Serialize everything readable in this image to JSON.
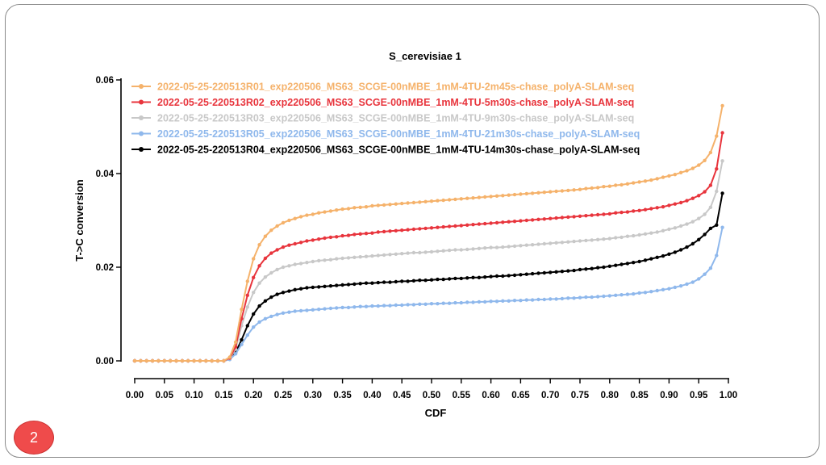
{
  "page_number": "2",
  "chart_data": {
    "type": "line",
    "title": "S_cerevisiae 1",
    "xlabel": "CDF",
    "ylabel": "T->C conversion",
    "xlim": [
      0.0,
      1.0
    ],
    "ylim": [
      0.0,
      0.06
    ],
    "x_ticks": [
      "0.00",
      "0.05",
      "0.10",
      "0.15",
      "0.20",
      "0.25",
      "0.30",
      "0.35",
      "0.40",
      "0.45",
      "0.50",
      "0.55",
      "0.60",
      "0.65",
      "0.70",
      "0.75",
      "0.80",
      "0.85",
      "0.90",
      "0.95",
      "1.00"
    ],
    "y_ticks": [
      "0.00",
      "0.02",
      "0.04",
      "0.06"
    ],
    "grid": false,
    "legend_position": "top-left",
    "x": [
      0.0,
      0.01,
      0.02,
      0.03,
      0.04,
      0.05,
      0.06,
      0.07,
      0.08,
      0.09,
      0.1,
      0.11,
      0.12,
      0.13,
      0.14,
      0.15,
      0.16,
      0.17,
      0.18,
      0.19,
      0.2,
      0.21,
      0.22,
      0.23,
      0.24,
      0.25,
      0.26,
      0.27,
      0.28,
      0.29,
      0.3,
      0.31,
      0.32,
      0.33,
      0.34,
      0.35,
      0.36,
      0.37,
      0.38,
      0.39,
      0.4,
      0.41,
      0.42,
      0.43,
      0.44,
      0.45,
      0.46,
      0.47,
      0.48,
      0.49,
      0.5,
      0.51,
      0.52,
      0.53,
      0.54,
      0.55,
      0.56,
      0.57,
      0.58,
      0.59,
      0.6,
      0.61,
      0.62,
      0.63,
      0.64,
      0.65,
      0.66,
      0.67,
      0.68,
      0.69,
      0.7,
      0.71,
      0.72,
      0.73,
      0.74,
      0.75,
      0.76,
      0.77,
      0.78,
      0.79,
      0.8,
      0.81,
      0.82,
      0.83,
      0.84,
      0.85,
      0.86,
      0.87,
      0.88,
      0.89,
      0.9,
      0.91,
      0.92,
      0.93,
      0.94,
      0.95,
      0.96,
      0.97,
      0.98,
      0.99
    ],
    "series": [
      {
        "name": "2022-05-25-220513R01_exp220506_MS63_SCGE-00nMBE_1mM-4TU-2m45s-chase_polyA-SLAM-seq",
        "color": "#f5b26b",
        "values": [
          0.0,
          0.0,
          0.0,
          0.0,
          0.0,
          0.0,
          0.0,
          0.0,
          0.0,
          0.0,
          0.0,
          0.0,
          0.0,
          0.0,
          0.0,
          0.0,
          0.0008,
          0.004,
          0.011,
          0.017,
          0.0218,
          0.0248,
          0.0266,
          0.0279,
          0.0288,
          0.0295,
          0.03,
          0.0304,
          0.0308,
          0.0311,
          0.0313,
          0.0316,
          0.0318,
          0.032,
          0.0322,
          0.0324,
          0.0325,
          0.0327,
          0.0328,
          0.0329,
          0.0331,
          0.0332,
          0.0333,
          0.0334,
          0.0335,
          0.0336,
          0.0337,
          0.0338,
          0.0339,
          0.034,
          0.0341,
          0.0342,
          0.0343,
          0.0344,
          0.0345,
          0.0346,
          0.0347,
          0.0348,
          0.0349,
          0.035,
          0.0351,
          0.0352,
          0.0353,
          0.0354,
          0.0355,
          0.0356,
          0.0357,
          0.0358,
          0.0359,
          0.036,
          0.0361,
          0.0362,
          0.0363,
          0.0364,
          0.0365,
          0.0366,
          0.0368,
          0.0369,
          0.037,
          0.0372,
          0.0373,
          0.0375,
          0.0376,
          0.0378,
          0.038,
          0.0382,
          0.0384,
          0.0386,
          0.0389,
          0.0392,
          0.0395,
          0.0398,
          0.0402,
          0.0406,
          0.0411,
          0.0418,
          0.0428,
          0.0445,
          0.048,
          0.0545
        ]
      },
      {
        "name": "2022-05-25-220513R02_exp220506_MS63_SCGE-00nMBE_1mM-4TU-5m30s-chase_polyA-SLAM-seq",
        "color": "#e8353d",
        "values": [
          0.0,
          0.0,
          0.0,
          0.0,
          0.0,
          0.0,
          0.0,
          0.0,
          0.0,
          0.0,
          0.0,
          0.0,
          0.0,
          0.0,
          0.0,
          0.0,
          0.0006,
          0.003,
          0.009,
          0.014,
          0.0178,
          0.0203,
          0.0219,
          0.023,
          0.0237,
          0.0243,
          0.0247,
          0.025,
          0.0253,
          0.0256,
          0.0258,
          0.026,
          0.0262,
          0.0264,
          0.0265,
          0.0267,
          0.0268,
          0.027,
          0.0271,
          0.0272,
          0.0273,
          0.0275,
          0.0276,
          0.0277,
          0.0278,
          0.0279,
          0.028,
          0.0281,
          0.0282,
          0.0283,
          0.0284,
          0.0285,
          0.0286,
          0.0287,
          0.0288,
          0.0289,
          0.029,
          0.0291,
          0.0292,
          0.0293,
          0.0294,
          0.0295,
          0.0296,
          0.0297,
          0.0298,
          0.0299,
          0.03,
          0.0301,
          0.0302,
          0.0303,
          0.0304,
          0.0305,
          0.0306,
          0.0307,
          0.0308,
          0.0309,
          0.031,
          0.0311,
          0.0312,
          0.0313,
          0.0314,
          0.0316,
          0.0317,
          0.0318,
          0.032,
          0.0321,
          0.0323,
          0.0325,
          0.0327,
          0.0329,
          0.0332,
          0.0335,
          0.0338,
          0.0342,
          0.0347,
          0.0353,
          0.0361,
          0.0375,
          0.041,
          0.0487
        ]
      },
      {
        "name": "2022-05-25-220513R03_exp220506_MS63_SCGE-00nMBE_1mM-4TU-9m30s-chase_polyA-SLAM-seq",
        "color": "#c8c8c8",
        "values": [
          0.0,
          0.0,
          0.0,
          0.0,
          0.0,
          0.0,
          0.0,
          0.0,
          0.0,
          0.0,
          0.0,
          0.0,
          0.0,
          0.0,
          0.0,
          0.0,
          0.0005,
          0.0025,
          0.0075,
          0.0115,
          0.0146,
          0.0166,
          0.0179,
          0.0188,
          0.0195,
          0.02,
          0.0203,
          0.0206,
          0.0208,
          0.021,
          0.0212,
          0.0214,
          0.0215,
          0.0216,
          0.0218,
          0.0219,
          0.022,
          0.0221,
          0.0222,
          0.0223,
          0.0224,
          0.0225,
          0.0226,
          0.0227,
          0.0228,
          0.0229,
          0.023,
          0.0231,
          0.0231,
          0.0232,
          0.0233,
          0.0234,
          0.0235,
          0.0236,
          0.0237,
          0.0237,
          0.0238,
          0.0239,
          0.024,
          0.0241,
          0.0242,
          0.0242,
          0.0243,
          0.0244,
          0.0245,
          0.0246,
          0.0247,
          0.0248,
          0.0249,
          0.025,
          0.0251,
          0.0252,
          0.0253,
          0.0254,
          0.0255,
          0.0256,
          0.0257,
          0.0258,
          0.0259,
          0.026,
          0.0261,
          0.0263,
          0.0264,
          0.0266,
          0.0267,
          0.0269,
          0.0271,
          0.0273,
          0.0275,
          0.0278,
          0.0281,
          0.0284,
          0.0288,
          0.0292,
          0.0297,
          0.0304,
          0.0313,
          0.0328,
          0.0362,
          0.0427
        ]
      },
      {
        "name": "2022-05-25-220513R05_exp220506_MS63_SCGE-00nMBE_1mM-4TU-21m30s-chase_polyA-SLAM-seq",
        "color": "#8fb8ec",
        "values": [
          0.0,
          0.0,
          0.0,
          0.0,
          0.0,
          0.0,
          0.0,
          0.0,
          0.0,
          0.0,
          0.0,
          0.0,
          0.0,
          0.0,
          0.0,
          0.0,
          0.0003,
          0.0015,
          0.0035,
          0.0055,
          0.0072,
          0.0083,
          0.009,
          0.0095,
          0.0099,
          0.0102,
          0.0104,
          0.0106,
          0.0107,
          0.0108,
          0.0109,
          0.011,
          0.0111,
          0.0112,
          0.0113,
          0.0114,
          0.0114,
          0.0115,
          0.0116,
          0.0116,
          0.0117,
          0.0117,
          0.0118,
          0.0118,
          0.0119,
          0.0119,
          0.012,
          0.012,
          0.0121,
          0.0121,
          0.0122,
          0.0122,
          0.0123,
          0.0123,
          0.0124,
          0.0124,
          0.0125,
          0.0125,
          0.0126,
          0.0126,
          0.0127,
          0.0127,
          0.0128,
          0.0128,
          0.0129,
          0.0129,
          0.013,
          0.013,
          0.0131,
          0.0131,
          0.0132,
          0.0132,
          0.0133,
          0.0134,
          0.0134,
          0.0135,
          0.0136,
          0.0136,
          0.0137,
          0.0138,
          0.0139,
          0.014,
          0.0141,
          0.0142,
          0.0143,
          0.0145,
          0.0146,
          0.0148,
          0.015,
          0.0152,
          0.0154,
          0.0157,
          0.016,
          0.0164,
          0.0168,
          0.0175,
          0.0185,
          0.0198,
          0.0225,
          0.0285
        ]
      },
      {
        "name": "2022-05-25-220513R04_exp220506_MS63_SCGE-00nMBE_1mM-4TU-14m30s-chase_polyA-SLAM-seq",
        "color": "#000000",
        "values": [
          0.0,
          0.0,
          0.0,
          0.0,
          0.0,
          0.0,
          0.0,
          0.0,
          0.0,
          0.0,
          0.0,
          0.0,
          0.0,
          0.0,
          0.0,
          0.0,
          0.0004,
          0.0018,
          0.0045,
          0.0075,
          0.01,
          0.0117,
          0.0128,
          0.0136,
          0.0142,
          0.0146,
          0.0149,
          0.0152,
          0.0154,
          0.0156,
          0.0157,
          0.0158,
          0.0159,
          0.016,
          0.0161,
          0.0162,
          0.0163,
          0.0164,
          0.0165,
          0.0166,
          0.0166,
          0.0167,
          0.0168,
          0.0168,
          0.0169,
          0.017,
          0.017,
          0.0171,
          0.0172,
          0.0172,
          0.0173,
          0.0174,
          0.0174,
          0.0175,
          0.0176,
          0.0176,
          0.0177,
          0.0178,
          0.0178,
          0.0179,
          0.018,
          0.0181,
          0.0181,
          0.0182,
          0.0183,
          0.0184,
          0.0185,
          0.0186,
          0.0187,
          0.0188,
          0.0189,
          0.019,
          0.0191,
          0.0192,
          0.0193,
          0.0195,
          0.0196,
          0.0197,
          0.0199,
          0.02,
          0.0202,
          0.0204,
          0.0206,
          0.0208,
          0.021,
          0.0212,
          0.0215,
          0.0218,
          0.0221,
          0.0224,
          0.0228,
          0.0232,
          0.0237,
          0.0243,
          0.025,
          0.0259,
          0.027,
          0.0283,
          0.029,
          0.0358
        ]
      }
    ]
  }
}
